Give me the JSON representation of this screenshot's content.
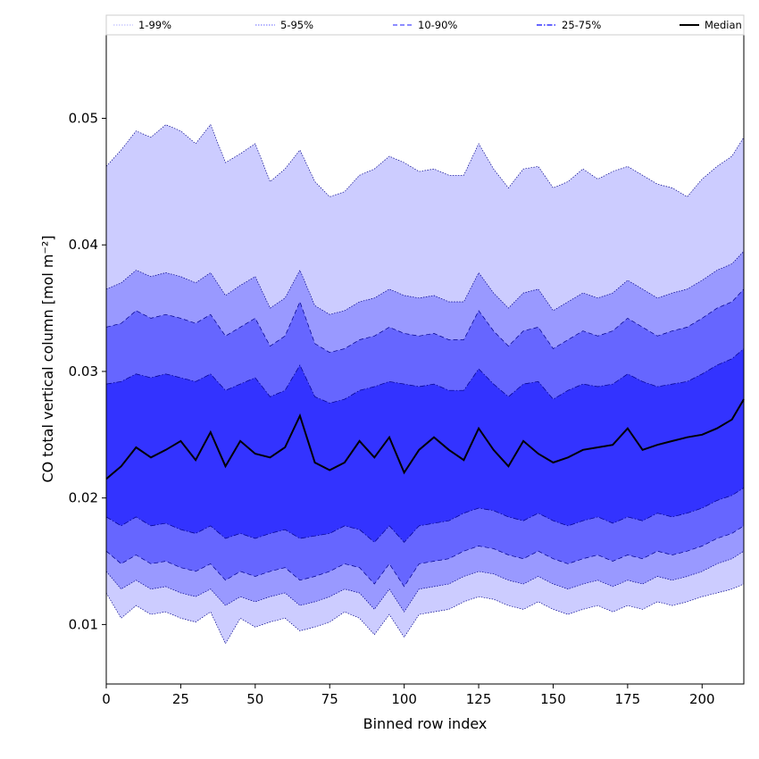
{
  "chart_data": {
    "type": "area",
    "xlabel": "Binned row index",
    "ylabel": "CO total vertical column [mol m⁻²]",
    "xlim": [
      0,
      214
    ],
    "ylim": [
      0.0053,
      0.0566
    ],
    "x_ticks": [
      0,
      25,
      50,
      75,
      100,
      125,
      150,
      175,
      200
    ],
    "y_ticks": [
      0.01,
      0.02,
      0.03,
      0.04,
      0.05
    ],
    "y_tick_labels": [
      "0.01",
      "0.02",
      "0.03",
      "0.04",
      "0.05"
    ],
    "grid": false,
    "legend": {
      "placement": "top",
      "entries": [
        {
          "label": "1-99%",
          "color": "#ccccff",
          "style": "dotted"
        },
        {
          "label": "5-95%",
          "color": "#9999ff",
          "style": "dotted"
        },
        {
          "label": "10-90%",
          "color": "#6666ff",
          "style": "dashed"
        },
        {
          "label": "25-75%",
          "color": "#3333ff",
          "style": "dashdot"
        },
        {
          "label": "Median",
          "color": "#000000",
          "style": "solid"
        }
      ]
    },
    "x": [
      0,
      5,
      10,
      15,
      20,
      25,
      30,
      35,
      40,
      45,
      50,
      55,
      60,
      65,
      70,
      75,
      80,
      85,
      90,
      95,
      100,
      105,
      110,
      115,
      120,
      125,
      130,
      135,
      140,
      145,
      150,
      155,
      160,
      165,
      170,
      175,
      180,
      185,
      190,
      195,
      200,
      205,
      210,
      214
    ],
    "series": [
      {
        "name": "1-99%",
        "color": "#ccccff",
        "lower": [
          0.0125,
          0.0105,
          0.0115,
          0.0108,
          0.011,
          0.0105,
          0.0102,
          0.011,
          0.0085,
          0.0105,
          0.0098,
          0.0102,
          0.0105,
          0.0095,
          0.0098,
          0.0102,
          0.011,
          0.0105,
          0.0092,
          0.0108,
          0.009,
          0.0108,
          0.011,
          0.0112,
          0.0118,
          0.0122,
          0.012,
          0.0115,
          0.0112,
          0.0118,
          0.0112,
          0.0108,
          0.0112,
          0.0115,
          0.011,
          0.0115,
          0.0112,
          0.0118,
          0.0115,
          0.0118,
          0.0122,
          0.0125,
          0.0128,
          0.0132
        ],
        "upper": [
          0.0462,
          0.0475,
          0.049,
          0.0485,
          0.0495,
          0.049,
          0.048,
          0.0495,
          0.0465,
          0.0472,
          0.048,
          0.045,
          0.046,
          0.0475,
          0.045,
          0.0438,
          0.0442,
          0.0455,
          0.046,
          0.047,
          0.0465,
          0.0458,
          0.046,
          0.0455,
          0.0455,
          0.048,
          0.046,
          0.0445,
          0.046,
          0.0462,
          0.0445,
          0.045,
          0.046,
          0.0452,
          0.0458,
          0.0462,
          0.0455,
          0.0448,
          0.0445,
          0.0438,
          0.0452,
          0.0462,
          0.047,
          0.0485
        ]
      },
      {
        "name": "5-95%",
        "color": "#9999ff",
        "lower": [
          0.0142,
          0.0128,
          0.0135,
          0.0128,
          0.013,
          0.0125,
          0.0122,
          0.0128,
          0.0115,
          0.0122,
          0.0118,
          0.0122,
          0.0125,
          0.0115,
          0.0118,
          0.0122,
          0.0128,
          0.0125,
          0.0112,
          0.0128,
          0.011,
          0.0128,
          0.013,
          0.0132,
          0.0138,
          0.0142,
          0.014,
          0.0135,
          0.0132,
          0.0138,
          0.0132,
          0.0128,
          0.0132,
          0.0135,
          0.013,
          0.0135,
          0.0132,
          0.0138,
          0.0135,
          0.0138,
          0.0142,
          0.0148,
          0.0152,
          0.0158
        ],
        "upper": [
          0.0365,
          0.037,
          0.038,
          0.0375,
          0.0378,
          0.0375,
          0.037,
          0.0378,
          0.036,
          0.0368,
          0.0375,
          0.035,
          0.0358,
          0.038,
          0.0352,
          0.0345,
          0.0348,
          0.0355,
          0.0358,
          0.0365,
          0.036,
          0.0358,
          0.036,
          0.0355,
          0.0355,
          0.0378,
          0.0362,
          0.035,
          0.0362,
          0.0365,
          0.0348,
          0.0355,
          0.0362,
          0.0358,
          0.0362,
          0.0372,
          0.0365,
          0.0358,
          0.0362,
          0.0365,
          0.0372,
          0.038,
          0.0385,
          0.0395
        ]
      },
      {
        "name": "10-90%",
        "color": "#6666ff",
        "lower": [
          0.0158,
          0.0148,
          0.0155,
          0.0148,
          0.015,
          0.0145,
          0.0142,
          0.0148,
          0.0135,
          0.0142,
          0.0138,
          0.0142,
          0.0145,
          0.0135,
          0.0138,
          0.0142,
          0.0148,
          0.0145,
          0.0132,
          0.0148,
          0.013,
          0.0148,
          0.015,
          0.0152,
          0.0158,
          0.0162,
          0.016,
          0.0155,
          0.0152,
          0.0158,
          0.0152,
          0.0148,
          0.0152,
          0.0155,
          0.015,
          0.0155,
          0.0152,
          0.0158,
          0.0155,
          0.0158,
          0.0162,
          0.0168,
          0.0172,
          0.0178
        ],
        "upper": [
          0.0335,
          0.0338,
          0.0348,
          0.0342,
          0.0345,
          0.0342,
          0.0338,
          0.0345,
          0.0328,
          0.0335,
          0.0342,
          0.032,
          0.0328,
          0.0355,
          0.0322,
          0.0315,
          0.0318,
          0.0325,
          0.0328,
          0.0335,
          0.033,
          0.0328,
          0.033,
          0.0325,
          0.0325,
          0.0348,
          0.0332,
          0.032,
          0.0332,
          0.0335,
          0.0318,
          0.0325,
          0.0332,
          0.0328,
          0.0332,
          0.0342,
          0.0335,
          0.0328,
          0.0332,
          0.0335,
          0.0342,
          0.035,
          0.0355,
          0.0365
        ]
      },
      {
        "name": "25-75%",
        "color": "#3333ff",
        "lower": [
          0.0185,
          0.0178,
          0.0185,
          0.0178,
          0.018,
          0.0175,
          0.0172,
          0.0178,
          0.0168,
          0.0172,
          0.0168,
          0.0172,
          0.0175,
          0.0168,
          0.017,
          0.0172,
          0.0178,
          0.0175,
          0.0165,
          0.0178,
          0.0165,
          0.0178,
          0.018,
          0.0182,
          0.0188,
          0.0192,
          0.019,
          0.0185,
          0.0182,
          0.0188,
          0.0182,
          0.0178,
          0.0182,
          0.0185,
          0.018,
          0.0185,
          0.0182,
          0.0188,
          0.0185,
          0.0188,
          0.0192,
          0.0198,
          0.0202,
          0.0208
        ],
        "upper": [
          0.029,
          0.0292,
          0.0298,
          0.0295,
          0.0298,
          0.0295,
          0.0292,
          0.0298,
          0.0285,
          0.029,
          0.0295,
          0.028,
          0.0285,
          0.0305,
          0.028,
          0.0275,
          0.0278,
          0.0285,
          0.0288,
          0.0292,
          0.029,
          0.0288,
          0.029,
          0.0285,
          0.0285,
          0.0302,
          0.029,
          0.028,
          0.029,
          0.0292,
          0.0278,
          0.0285,
          0.029,
          0.0288,
          0.029,
          0.0298,
          0.0292,
          0.0288,
          0.029,
          0.0292,
          0.0298,
          0.0305,
          0.031,
          0.0318
        ]
      },
      {
        "name": "Median",
        "color": "#000000",
        "values": [
          0.0215,
          0.0225,
          0.024,
          0.0232,
          0.0238,
          0.0245,
          0.023,
          0.0252,
          0.0225,
          0.0245,
          0.0235,
          0.0232,
          0.024,
          0.0265,
          0.0228,
          0.0222,
          0.0228,
          0.0245,
          0.0232,
          0.0248,
          0.022,
          0.0238,
          0.0248,
          0.0238,
          0.023,
          0.0255,
          0.0238,
          0.0225,
          0.0245,
          0.0235,
          0.0228,
          0.0232,
          0.0238,
          0.024,
          0.0242,
          0.0255,
          0.0238,
          0.0242,
          0.0245,
          0.0248,
          0.025,
          0.0255,
          0.0262,
          0.0278
        ]
      }
    ]
  }
}
